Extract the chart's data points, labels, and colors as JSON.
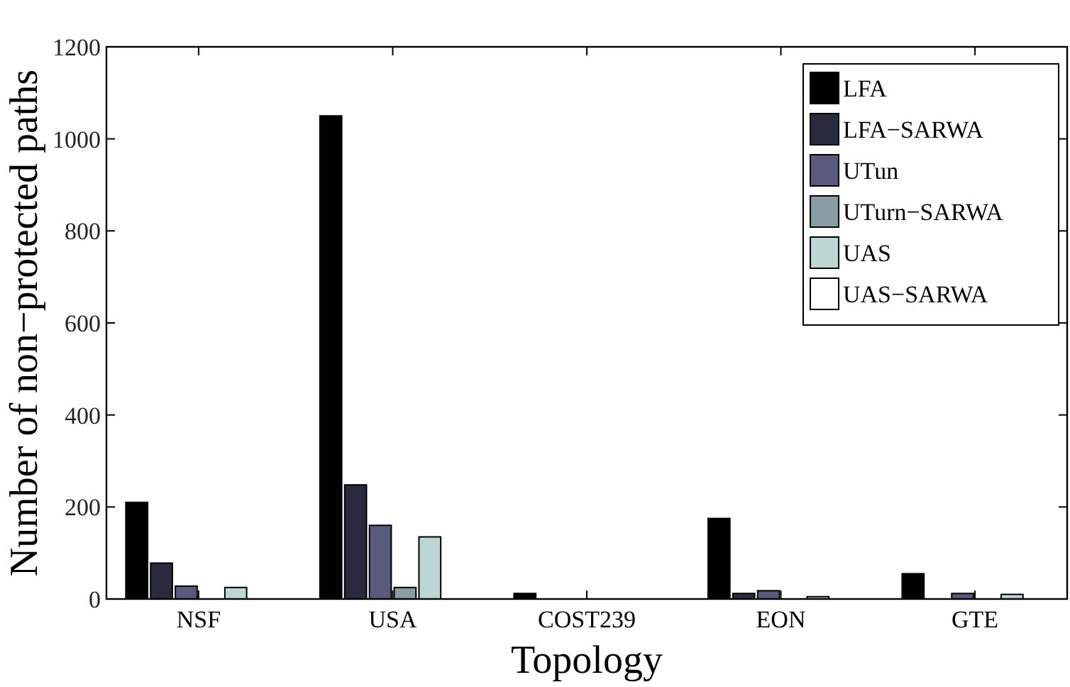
{
  "chart_data": {
    "type": "bar",
    "xlabel": "Topology",
    "ylabel": "Number of non−protected paths",
    "categories": [
      "NSF",
      "USA",
      "COST239",
      "EON",
      "GTE"
    ],
    "series": [
      {
        "name": "LFA",
        "color": "#000000",
        "values": [
          210,
          1050,
          12,
          175,
          55
        ]
      },
      {
        "name": "LFA−SARWA",
        "color": "#2a2a3e",
        "values": [
          78,
          248,
          0,
          12,
          0
        ]
      },
      {
        "name": "UTun",
        "color": "#5a5a7e",
        "values": [
          28,
          160,
          0,
          18,
          12
        ]
      },
      {
        "name": "UTurn−SARWA",
        "color": "#8a9ca4",
        "values": [
          0,
          25,
          0,
          0,
          0
        ]
      },
      {
        "name": "UAS",
        "color": "#bcd6d4",
        "values": [
          25,
          135,
          0,
          5,
          10
        ]
      },
      {
        "name": "UAS−SARWA",
        "color": "#ffffff",
        "values": [
          0,
          0,
          0,
          0,
          0
        ]
      }
    ],
    "ylim": [
      0,
      1200
    ],
    "yticks": [
      0,
      200,
      400,
      600,
      800,
      1000,
      1200
    ],
    "legend": "top right",
    "grid": false
  }
}
